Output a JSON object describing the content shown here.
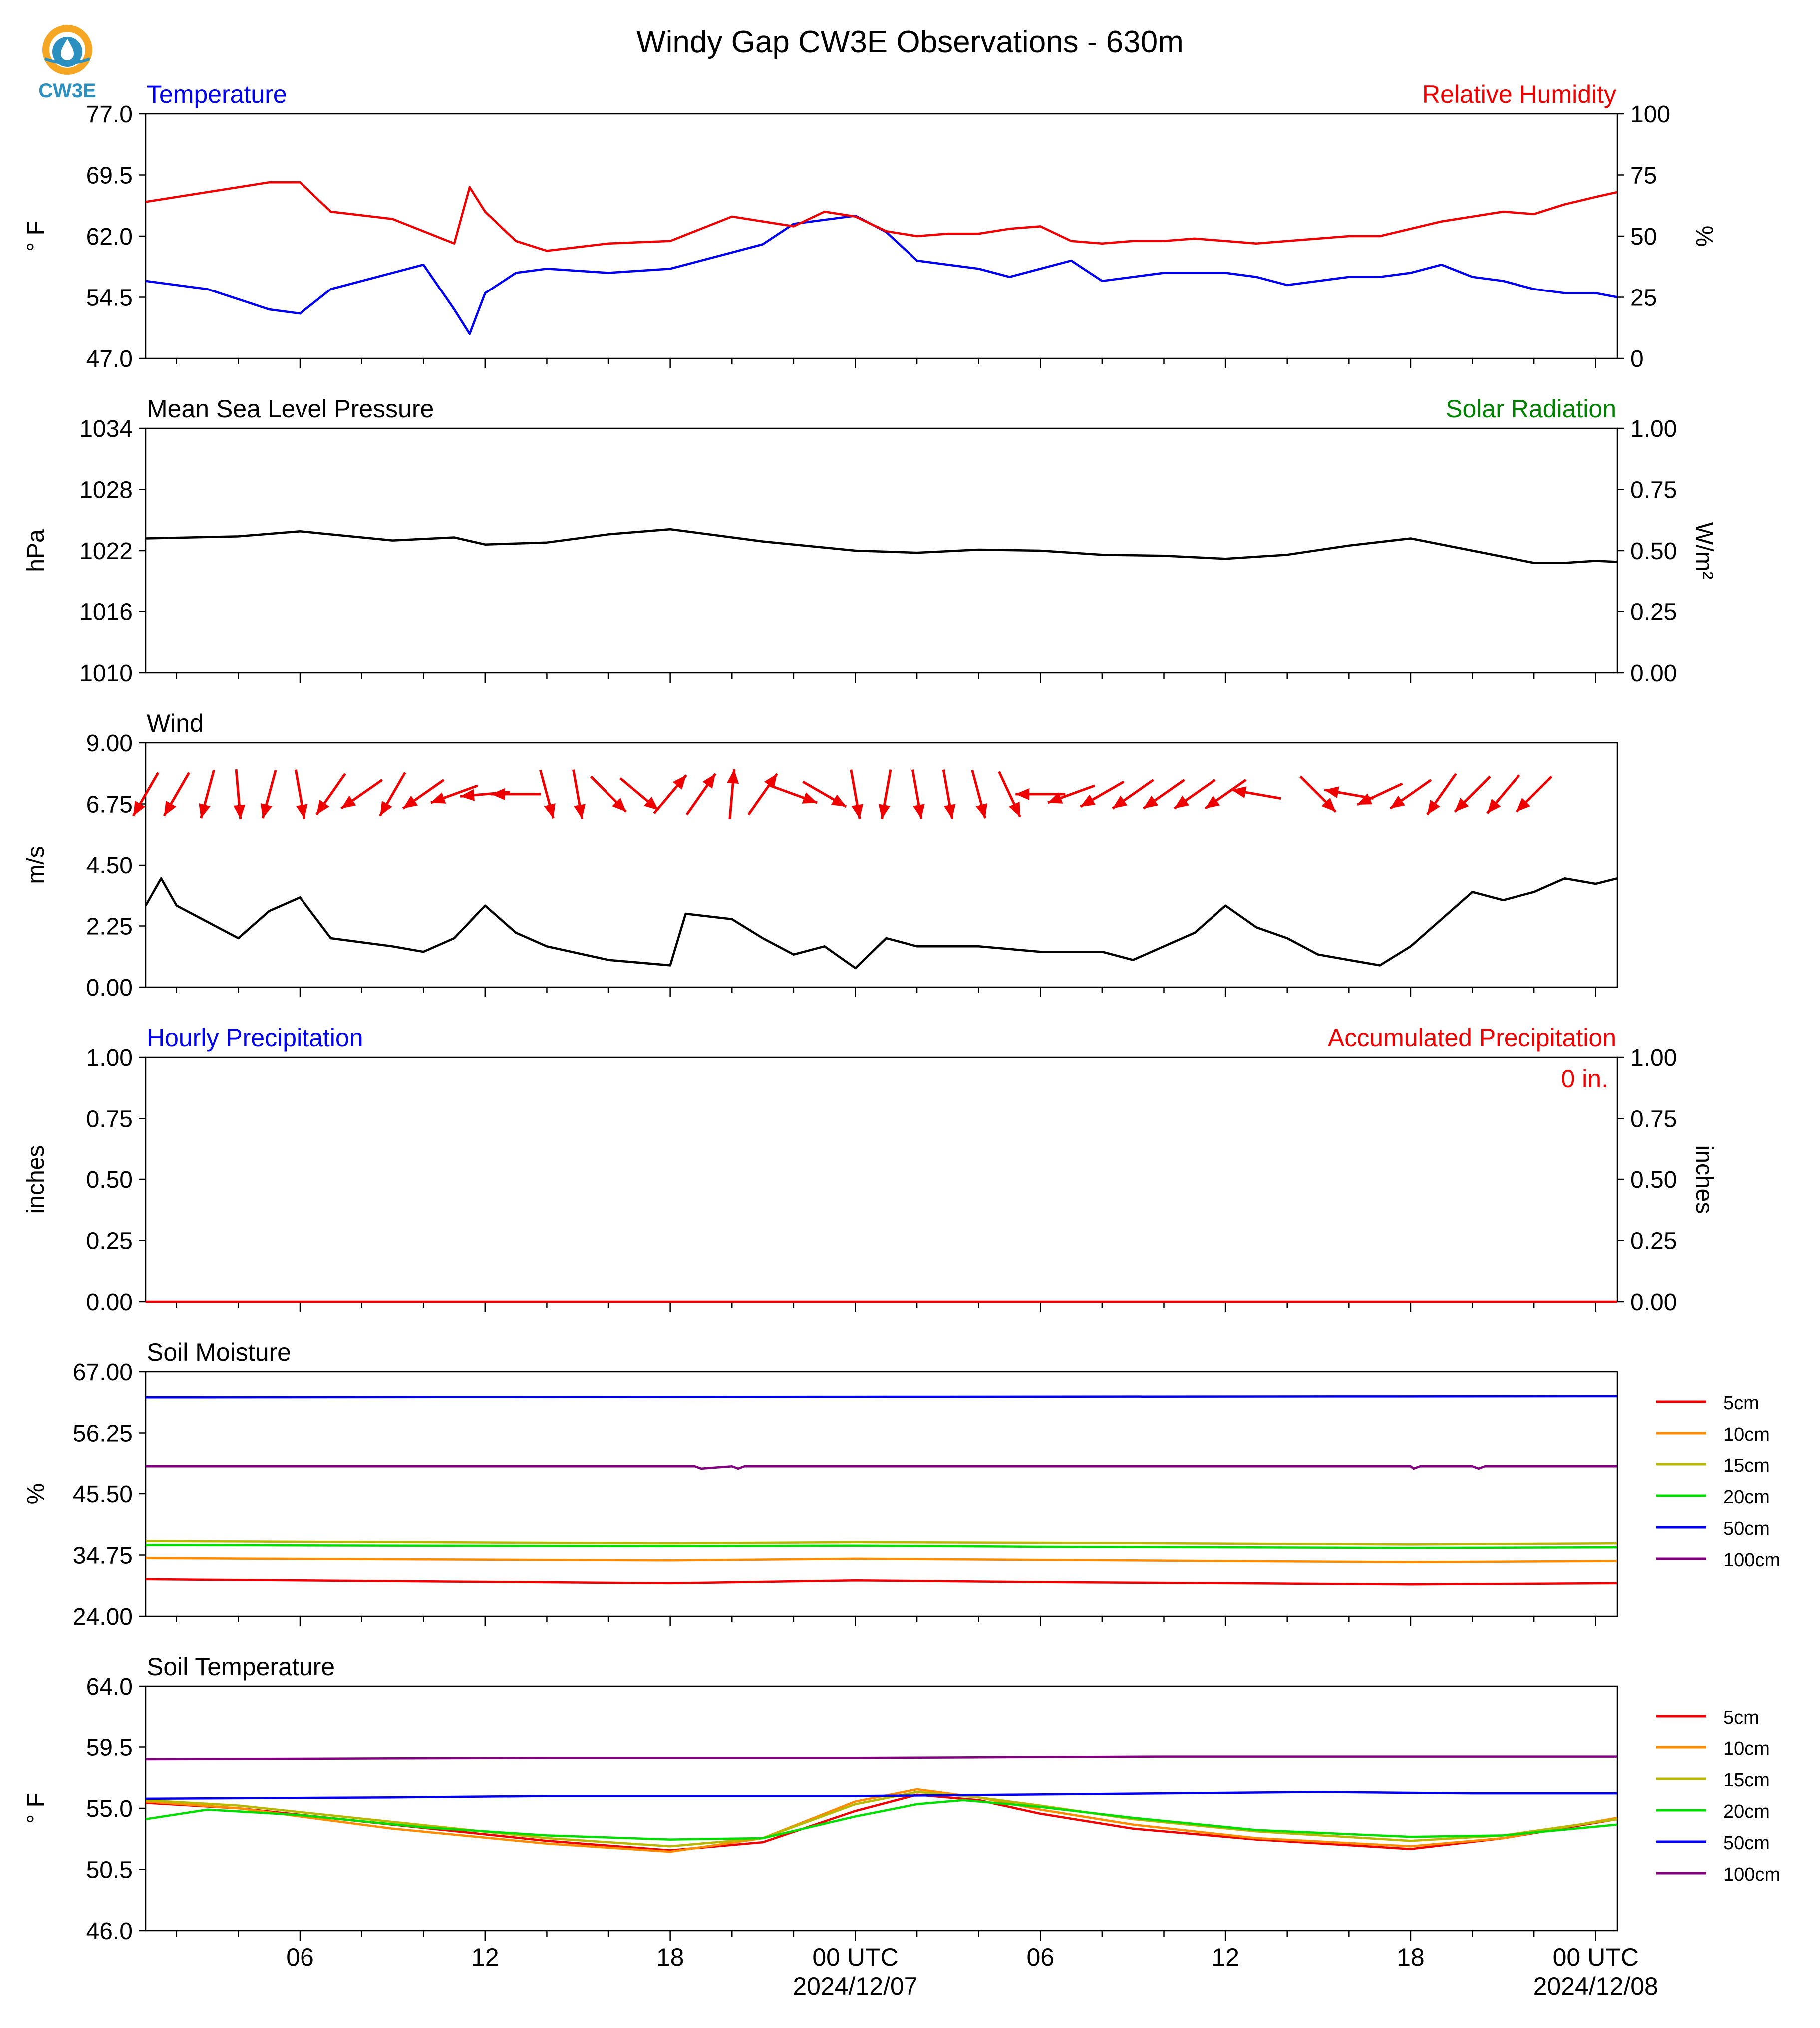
{
  "title": "Windy Gap CW3E Observations - 630m",
  "logo": {
    "text": "CW3E",
    "colors": [
      "#f5a623",
      "#2b8fbf"
    ],
    "icon": "water-drop-icon"
  },
  "x_axis": {
    "range_hours": [
      -23.0,
      24.7
    ],
    "ticks": [
      {
        "h": -18,
        "label": "06",
        "sub": ""
      },
      {
        "h": -12,
        "label": "12",
        "sub": ""
      },
      {
        "h": -6,
        "label": "18",
        "sub": ""
      },
      {
        "h": 0,
        "label": "00 UTC",
        "sub": "2024/12/07"
      },
      {
        "h": 6,
        "label": "06",
        "sub": ""
      },
      {
        "h": 12,
        "label": "12",
        "sub": ""
      },
      {
        "h": 18,
        "label": "18",
        "sub": ""
      },
      {
        "h": 24,
        "label": "00 UTC",
        "sub": "2024/12/08"
      }
    ]
  },
  "chart_data": [
    {
      "type": "line",
      "left_title": "Temperature",
      "left_title_color": "#0000ee",
      "right_title": "Relative Humidity",
      "right_title_color": "#ee0000",
      "ylabel": "° F",
      "ylim": [
        47.0,
        77.0
      ],
      "yticks": [
        "47.0",
        "54.5",
        "62.0",
        "69.5",
        "77.0"
      ],
      "y2label": "%",
      "y2lim": [
        0,
        100
      ],
      "y2ticks": [
        "0",
        "25",
        "50",
        "75",
        "100"
      ],
      "series": [
        {
          "axis": "left",
          "color": "#0000ee",
          "x": [
            -23,
            -21,
            -19,
            -18,
            -17,
            -15,
            -14,
            -13,
            -12.5,
            -12,
            -11,
            -10,
            -8,
            -6,
            -4,
            -3,
            -2,
            -1,
            0,
            1,
            2,
            3,
            4,
            5,
            6,
            7,
            8,
            9,
            10,
            11,
            12,
            13,
            14,
            15,
            16,
            17,
            18,
            19,
            20,
            21,
            22,
            23,
            24,
            24.7
          ],
          "y": [
            56.5,
            55.5,
            53.0,
            52.5,
            55.5,
            57.5,
            58.5,
            53.0,
            50.0,
            55.0,
            57.5,
            58.0,
            57.5,
            58.0,
            60.0,
            61.0,
            63.5,
            64.0,
            64.5,
            62.5,
            59.0,
            58.5,
            58.0,
            57.0,
            58.0,
            59.0,
            56.5,
            57.0,
            57.5,
            57.5,
            57.5,
            57.0,
            56.0,
            56.5,
            57.0,
            57.0,
            57.5,
            58.5,
            57.0,
            56.5,
            55.5,
            55.0,
            55.0,
            54.5
          ]
        },
        {
          "axis": "right",
          "color": "#ee0000",
          "x": [
            -23,
            -21,
            -19,
            -18,
            -17,
            -15,
            -14,
            -13,
            -12.5,
            -12,
            -11,
            -10,
            -8,
            -6,
            -4,
            -3,
            -2,
            -1,
            0,
            1,
            2,
            3,
            4,
            5,
            6,
            7,
            8,
            9,
            10,
            11,
            12,
            13,
            14,
            15,
            16,
            17,
            18,
            19,
            20,
            21,
            22,
            23,
            24,
            24.7
          ],
          "y": [
            64,
            68,
            72,
            72,
            60,
            57,
            52,
            47,
            70,
            60,
            48,
            44,
            47,
            48,
            58,
            56,
            54,
            60,
            58,
            52,
            50,
            51,
            51,
            53,
            54,
            48,
            47,
            48,
            48,
            49,
            48,
            47,
            48,
            49,
            50,
            50,
            53,
            56,
            58,
            60,
            59,
            63,
            66,
            68
          ]
        }
      ]
    },
    {
      "type": "line",
      "left_title": "Mean Sea Level Pressure",
      "left_title_color": "#000000",
      "right_title": "Solar Radiation",
      "right_title_color": "#008000",
      "ylabel": "hPa",
      "ylim": [
        1010,
        1034
      ],
      "yticks": [
        "1010",
        "1016",
        "1022",
        "1028",
        "1034"
      ],
      "y2label": "W/m²",
      "y2lim": [
        0,
        1
      ],
      "y2ticks": [
        "0.00",
        "0.25",
        "0.50",
        "0.75",
        "1.00"
      ],
      "series": [
        {
          "axis": "left",
          "color": "#000000",
          "x": [
            -23,
            -20,
            -18,
            -15,
            -13,
            -12,
            -10,
            -8,
            -6,
            -3,
            0,
            2,
            4,
            6,
            8,
            10,
            12,
            14,
            16,
            18,
            20,
            22,
            23,
            24,
            24.7
          ],
          "y": [
            1023.2,
            1023.4,
            1023.9,
            1023.0,
            1023.3,
            1022.6,
            1022.8,
            1023.6,
            1024.1,
            1022.9,
            1022.0,
            1021.8,
            1022.1,
            1022.0,
            1021.6,
            1021.5,
            1021.2,
            1021.6,
            1022.5,
            1023.2,
            1022.0,
            1020.8,
            1020.8,
            1021.0,
            1020.9
          ]
        }
      ]
    },
    {
      "type": "line",
      "left_title": "Wind",
      "left_title_color": "#000000",
      "right_title": "",
      "right_title_color": "#000000",
      "ylabel": "m/s",
      "ylim": [
        0,
        9
      ],
      "yticks": [
        "0.00",
        "2.25",
        "4.50",
        "6.75",
        "9.00"
      ],
      "series": [
        {
          "axis": "left",
          "color": "#000000",
          "x": [
            -23,
            -22.5,
            -22,
            -20,
            -19,
            -18,
            -17,
            -15,
            -14,
            -13,
            -12,
            -11,
            -10,
            -8,
            -6,
            -5.5,
            -4,
            -3,
            -2,
            -1,
            0,
            1,
            2,
            4,
            6,
            8,
            9,
            10,
            11,
            12,
            13,
            14,
            15,
            16,
            17,
            18,
            19,
            20,
            21,
            22,
            23,
            24,
            24.7
          ],
          "y": [
            3.0,
            4.0,
            3.0,
            1.8,
            2.8,
            3.3,
            1.8,
            1.5,
            1.3,
            1.8,
            3.0,
            2.0,
            1.5,
            1.0,
            0.8,
            2.7,
            2.5,
            1.8,
            1.2,
            1.5,
            0.7,
            1.8,
            1.5,
            1.5,
            1.3,
            1.3,
            1.0,
            1.5,
            2.0,
            3.0,
            2.2,
            1.8,
            1.2,
            1.0,
            0.8,
            1.5,
            2.5,
            3.5,
            3.2,
            3.5,
            4.0,
            3.8,
            4.0
          ]
        }
      ],
      "wind_arrows": [
        {
          "h": -23,
          "dir": -30
        },
        {
          "h": -22,
          "dir": -30
        },
        {
          "h": -21,
          "dir": -15
        },
        {
          "h": -20,
          "dir": 5
        },
        {
          "h": -19,
          "dir": -15
        },
        {
          "h": -18,
          "dir": 10
        },
        {
          "h": -17,
          "dir": -35
        },
        {
          "h": -16,
          "dir": -55
        },
        {
          "h": -15,
          "dir": -30
        },
        {
          "h": -14,
          "dir": -55
        },
        {
          "h": -13,
          "dir": -70
        },
        {
          "h": -12,
          "dir": -85
        },
        {
          "h": -11,
          "dir": -90
        },
        {
          "h": -10,
          "dir": 15
        },
        {
          "h": -9,
          "dir": 10
        },
        {
          "h": -8,
          "dir": 45
        },
        {
          "h": -7,
          "dir": 50
        },
        {
          "h": -6,
          "dir": 140
        },
        {
          "h": -5,
          "dir": 145
        },
        {
          "h": -4,
          "dir": 175
        },
        {
          "h": -3,
          "dir": 145
        },
        {
          "h": -2,
          "dir": 70
        },
        {
          "h": -1,
          "dir": 60
        },
        {
          "h": 0,
          "dir": 10
        },
        {
          "h": 1,
          "dir": -10
        },
        {
          "h": 2,
          "dir": 10
        },
        {
          "h": 3,
          "dir": 10
        },
        {
          "h": 4,
          "dir": 15
        },
        {
          "h": 5,
          "dir": 25
        },
        {
          "h": 6,
          "dir": -90
        },
        {
          "h": 7,
          "dir": -70
        },
        {
          "h": 8,
          "dir": -60
        },
        {
          "h": 9,
          "dir": -55
        },
        {
          "h": 10,
          "dir": -55
        },
        {
          "h": 11,
          "dir": -55
        },
        {
          "h": 12,
          "dir": -55
        },
        {
          "h": 13,
          "dir": -100
        },
        {
          "h": 15,
          "dir": 45
        },
        {
          "h": 16,
          "dir": -100
        },
        {
          "h": 17,
          "dir": -65
        },
        {
          "h": 18,
          "dir": -55
        },
        {
          "h": 19,
          "dir": -35
        },
        {
          "h": 20,
          "dir": -45
        },
        {
          "h": 21,
          "dir": -40
        },
        {
          "h": 22,
          "dir": -45
        }
      ]
    },
    {
      "type": "line",
      "left_title": "Hourly Precipitation",
      "left_title_color": "#0000ee",
      "right_title": "Accumulated Precipitation",
      "right_title_color": "#ee0000",
      "ylabel": "inches",
      "ylim": [
        0,
        1
      ],
      "yticks": [
        "0.00",
        "0.25",
        "0.50",
        "0.75",
        "1.00"
      ],
      "y2label": "inches",
      "y2lim": [
        0,
        1
      ],
      "y2ticks": [
        "0.00",
        "0.25",
        "0.50",
        "0.75",
        "1.00"
      ],
      "annotation": "0 in.",
      "series": [
        {
          "axis": "left",
          "color": "#ee0000",
          "x": [
            -23,
            24.7
          ],
          "y": [
            0,
            0
          ]
        }
      ]
    },
    {
      "type": "line",
      "left_title": "Soil Moisture",
      "left_title_color": "#000000",
      "right_title": "",
      "right_title_color": "#000000",
      "ylabel": "%",
      "ylim": [
        24.0,
        67.0
      ],
      "yticks": [
        "24.00",
        "34.75",
        "45.50",
        "56.25",
        "67.00"
      ],
      "legend": "right",
      "series": [
        {
          "name": "5cm",
          "color": "#ee0000",
          "x": [
            -23,
            -6,
            0,
            6,
            18,
            24.7
          ],
          "y": [
            30.5,
            29.8,
            30.3,
            30.0,
            29.6,
            29.8
          ]
        },
        {
          "name": "10cm",
          "color": "#ff8c00",
          "x": [
            -23,
            -6,
            0,
            6,
            18,
            24.7
          ],
          "y": [
            34.2,
            33.8,
            34.1,
            33.9,
            33.5,
            33.7
          ]
        },
        {
          "name": "15cm",
          "color": "#b8b800",
          "x": [
            -23,
            -6,
            0,
            6,
            18,
            24.7
          ],
          "y": [
            37.2,
            36.8,
            37.0,
            36.9,
            36.6,
            36.8
          ]
        },
        {
          "name": "20cm",
          "color": "#00dd00",
          "x": [
            -23,
            -6,
            0,
            6,
            18,
            24.7
          ],
          "y": [
            36.5,
            36.3,
            36.4,
            36.2,
            36.0,
            36.1
          ]
        },
        {
          "name": "50cm",
          "color": "#0000ee",
          "x": [
            -23,
            0,
            24.7
          ],
          "y": [
            62.5,
            62.6,
            62.7
          ]
        },
        {
          "name": "100cm",
          "color": "#800080",
          "x": [
            -23,
            -6,
            -5.2,
            -5,
            -4,
            -3.8,
            -3.6,
            0,
            18,
            18.1,
            18.3,
            20,
            20.2,
            20.4,
            24.7
          ],
          "y": [
            50.3,
            50.3,
            50.3,
            49.9,
            50.3,
            49.9,
            50.3,
            50.3,
            50.3,
            49.9,
            50.3,
            50.3,
            49.9,
            50.3,
            50.3
          ]
        }
      ]
    },
    {
      "type": "line",
      "left_title": "Soil Temperature",
      "left_title_color": "#000000",
      "right_title": "",
      "right_title_color": "#000000",
      "ylabel": "° F",
      "ylim": [
        46.0,
        64.0
      ],
      "yticks": [
        "46.0",
        "50.5",
        "55.0",
        "59.5",
        "64.0"
      ],
      "legend": "right",
      "series": [
        {
          "name": "5cm",
          "color": "#ee0000",
          "x": [
            -23,
            -20,
            -15,
            -10,
            -6,
            -3,
            0,
            2,
            4,
            6,
            9,
            13,
            18,
            21,
            24.7
          ],
          "y": [
            55.4,
            55.0,
            53.8,
            52.6,
            51.9,
            52.5,
            54.8,
            56.0,
            55.6,
            54.6,
            53.5,
            52.7,
            52.0,
            52.8,
            54.2
          ]
        },
        {
          "name": "10cm",
          "color": "#ff8c00",
          "x": [
            -23,
            -20,
            -15,
            -10,
            -6,
            -3,
            0,
            2,
            4,
            6,
            9,
            13,
            18,
            21,
            24.7
          ],
          "y": [
            55.5,
            55.0,
            53.5,
            52.4,
            51.8,
            52.8,
            55.5,
            56.4,
            55.8,
            54.9,
            53.8,
            52.8,
            52.2,
            52.8,
            54.3
          ]
        },
        {
          "name": "15cm",
          "color": "#b8b800",
          "x": [
            -23,
            -20,
            -15,
            -10,
            -6,
            -3,
            0,
            2,
            4,
            6,
            9,
            13,
            18,
            21,
            24.7
          ],
          "y": [
            55.6,
            55.2,
            54.0,
            52.8,
            52.2,
            52.8,
            55.3,
            56.2,
            55.8,
            55.2,
            54.2,
            53.3,
            52.6,
            53.0,
            54.2
          ]
        },
        {
          "name": "20cm",
          "color": "#00dd00",
          "x": [
            -23,
            -21,
            -18,
            -14,
            -10,
            -6,
            -3,
            0,
            2,
            3.5,
            6,
            9,
            13,
            18,
            21,
            24.7
          ],
          "y": [
            54.2,
            54.9,
            54.5,
            53.6,
            53.0,
            52.7,
            52.8,
            54.4,
            55.3,
            55.6,
            55.1,
            54.3,
            53.4,
            52.9,
            53.0,
            53.8
          ]
        },
        {
          "name": "50cm",
          "color": "#0000ee",
          "x": [
            -23,
            -15,
            -10,
            -5,
            0,
            5,
            10,
            15,
            20,
            24.7
          ],
          "y": [
            55.7,
            55.8,
            55.9,
            55.9,
            55.9,
            56.0,
            56.1,
            56.2,
            56.1,
            56.1
          ]
        },
        {
          "name": "100cm",
          "color": "#800080",
          "x": [
            -23,
            -10,
            0,
            10,
            24.7
          ],
          "y": [
            58.6,
            58.7,
            58.7,
            58.8,
            58.8
          ]
        }
      ]
    }
  ]
}
